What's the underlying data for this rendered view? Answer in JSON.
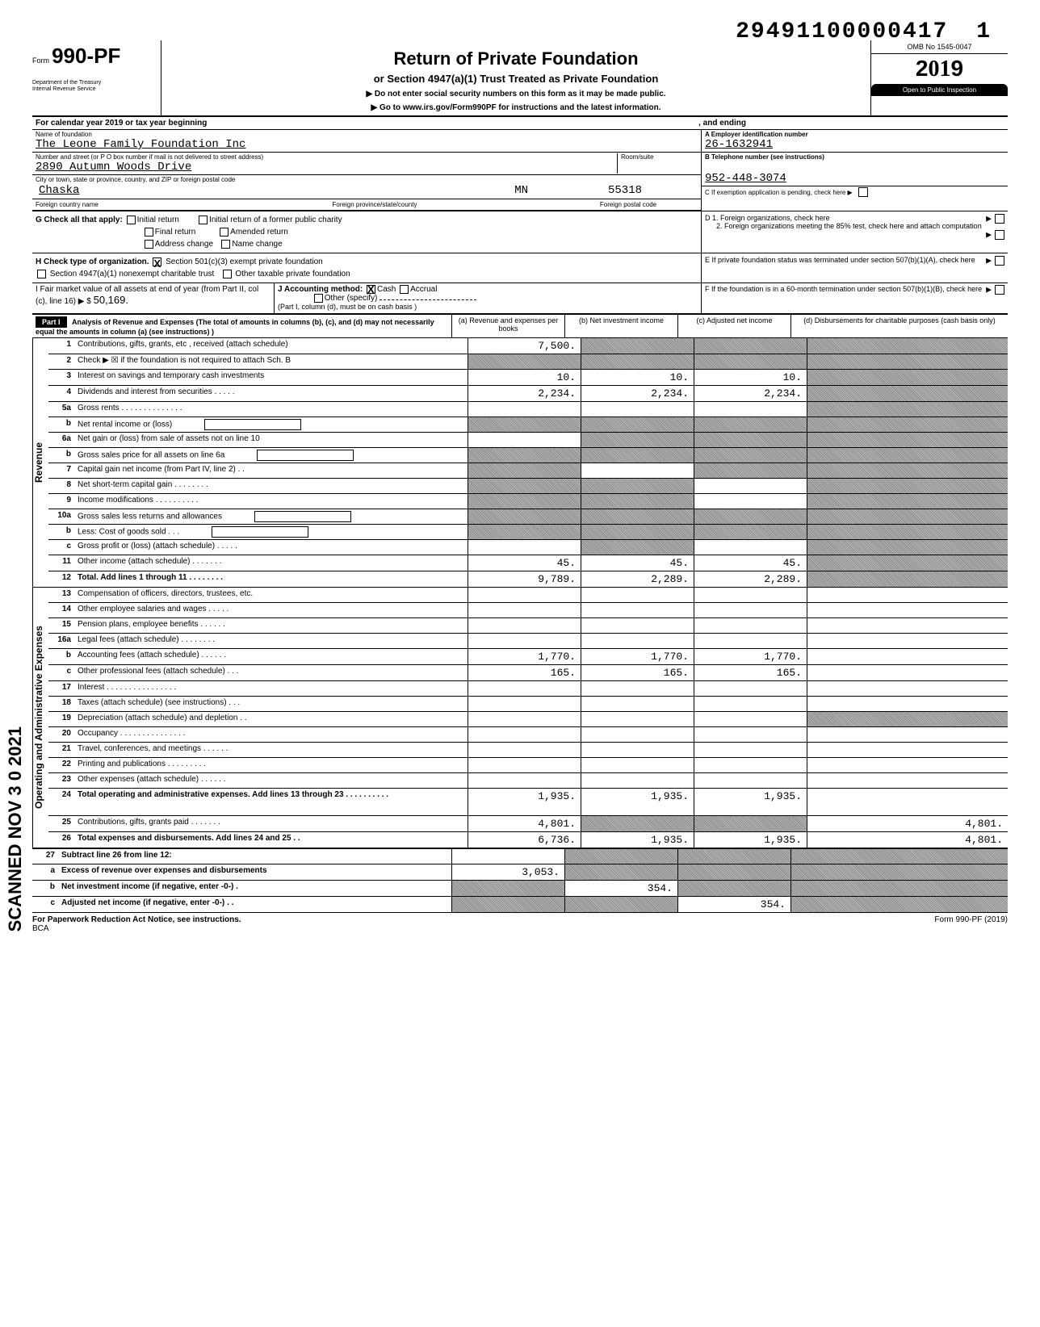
{
  "meta": {
    "doc_number": "29491100000417",
    "doc_number_trail": "1",
    "scanned_stamp": "SCANNED NOV 3 0 2021",
    "footer_left": "For Paperwork Reduction Act Notice, see instructions.",
    "footer_bca": "BCA",
    "footer_right": "Form 990-PF (2019)"
  },
  "header": {
    "form_label": "Form",
    "form_number": "990-PF",
    "dept": "Department of the Treasury\nInternal Revenue Service",
    "title": "Return of Private Foundation",
    "subtitle": "or Section 4947(a)(1) Trust Treated as Private Foundation",
    "instr1": "▶   Do not enter social security numbers on this form as it may be made public.",
    "instr2": "▶   Go to www.irs.gov/Form990PF for instructions and the latest information.",
    "omb": "OMB No 1545-0047",
    "year_prefix": "2",
    "year_mid": "01",
    "year_suffix": "9",
    "inspect": "Open to Public Inspection"
  },
  "calendar": {
    "text": "For calendar year 2019 or tax year beginning",
    "ending": ", and ending"
  },
  "identity": {
    "name_lbl": "Name of foundation",
    "name": "The Leone Family Foundation Inc",
    "addr_lbl": "Number and street (or P O  box number if mail is not delivered to street address)",
    "addr": "2890 Autumn Woods Drive",
    "room_lbl": "Room/suite",
    "city_lbl": "City or town, state or province, country, and ZIP or foreign postal code",
    "city": "Chaska",
    "state": "MN",
    "zip": "55318",
    "foreign_country_lbl": "Foreign country name",
    "foreign_prov_lbl": "Foreign province/state/county",
    "foreign_postal_lbl": "Foreign postal code",
    "ein_lbl": "A  Employer identification number",
    "ein": "26-1632941",
    "tel_lbl": "B  Telephone number (see instructions)",
    "tel": "952-448-3074",
    "c_lbl": "C  If exemption application is pending, check here  ▶"
  },
  "g": {
    "label": "G  Check all that apply:",
    "opts": {
      "initial_return": "Initial return",
      "initial_former": "Initial return of a former public charity",
      "final_return": "Final return",
      "amended": "Amended return",
      "addr_change": "Address change",
      "name_change": "Name change"
    },
    "d1": "D  1. Foreign organizations, check here",
    "d2": "2. Foreign organizations meeting the 85% test, check here and attach computation"
  },
  "h": {
    "label": "H  Check type of organization.",
    "opt1": "Section 501(c)(3) exempt private foundation",
    "opt2": "Section 4947(a)(1) nonexempt charitable trust",
    "opt3": "Other taxable private foundation",
    "e": "E  If private foundation status was terminated under section 507(b)(1)(A), check here"
  },
  "i": {
    "label": "I   Fair market value of all assets at end of year (from Part II, col (c), line 16)  ▶ $",
    "value": "50,169.",
    "j_label": "J   Accounting method:",
    "j_cash": "Cash",
    "j_accrual": "Accrual",
    "j_other": "Other (specify)",
    "j_note": "(Part I, column (d), must be on cash basis )",
    "f": "F  If the foundation is in a 60-month termination under section 507(b)(1)(B), check here"
  },
  "part1": {
    "badge": "Part I",
    "head_text": "Analysis of Revenue and Expenses (The total of amounts in columns (b), (c), and (d) may not necessarily equal the amounts in column (a) (see instructions) )",
    "col_a": "(a) Revenue and expenses per books",
    "col_b": "(b) Net investment income",
    "col_c": "(c) Adjusted net income",
    "col_d": "(d) Disbursements for charitable purposes (cash basis only)",
    "rev_label": "Revenue",
    "exp_label": "Operating and Administrative Expenses",
    "rows": [
      {
        "n": "1",
        "t": "Contributions, gifts, grants, etc , received (attach schedule)",
        "a": "7,500.",
        "b": "shade",
        "c": "shade",
        "d": "shade"
      },
      {
        "n": "2",
        "t": "Check ▶ ☒ if the foundation is not required to attach Sch. B",
        "a": "shade",
        "b": "shade",
        "c": "shade",
        "d": "shade"
      },
      {
        "n": "3",
        "t": "Interest on savings and temporary cash investments",
        "a": "10.",
        "b": "10.",
        "c": "10.",
        "d": "shade"
      },
      {
        "n": "4",
        "t": "Dividends and interest from securities  . . . . .",
        "a": "2,234.",
        "b": "2,234.",
        "c": "2,234.",
        "d": "shade"
      },
      {
        "n": "5a",
        "t": "Gross rents  . . . . . . . . . . . . . .",
        "a": "",
        "b": "",
        "c": "",
        "d": "shade"
      },
      {
        "n": "b",
        "t": "Net rental income or (loss)",
        "a": "shade",
        "b": "shade",
        "c": "shade",
        "d": "shade",
        "box": true
      },
      {
        "n": "6a",
        "t": "Net gain or (loss) from sale of assets not on line 10",
        "a": "",
        "b": "shade",
        "c": "shade",
        "d": "shade"
      },
      {
        "n": "b",
        "t": "Gross sales price for all assets on line 6a",
        "a": "shade",
        "b": "shade",
        "c": "shade",
        "d": "shade",
        "box": true
      },
      {
        "n": "7",
        "t": "Capital gain net income (from Part IV, line 2)  . .",
        "a": "shade",
        "b": "",
        "c": "shade",
        "d": "shade"
      },
      {
        "n": "8",
        "t": "Net short-term capital gain  . . . . . . . .",
        "a": "shade",
        "b": "shade",
        "c": "",
        "d": "shade"
      },
      {
        "n": "9",
        "t": "Income modifications  . . . . . . . . . .",
        "a": "shade",
        "b": "shade",
        "c": "",
        "d": "shade"
      },
      {
        "n": "10a",
        "t": "Gross sales less returns and allowances",
        "a": "shade",
        "b": "shade",
        "c": "shade",
        "d": "shade",
        "box": true
      },
      {
        "n": "b",
        "t": "Less: Cost of goods sold   . . .",
        "a": "shade",
        "b": "shade",
        "c": "shade",
        "d": "shade",
        "box": true
      },
      {
        "n": "c",
        "t": "Gross profit or (loss) (attach schedule)  . . . . .",
        "a": "",
        "b": "shade",
        "c": "",
        "d": "shade"
      },
      {
        "n": "11",
        "t": "Other income (attach schedule)  . . . . . . .",
        "a": "45.",
        "b": "45.",
        "c": "45.",
        "d": "shade"
      },
      {
        "n": "12",
        "t": "Total.  Add lines 1 through 11  . . . . . . . .",
        "a": "9,789.",
        "b": "2,289.",
        "c": "2,289.",
        "d": "shade",
        "bold": true
      }
    ],
    "exp_rows": [
      {
        "n": "13",
        "t": "Compensation of officers, directors, trustees, etc.",
        "a": "",
        "b": "",
        "c": "",
        "d": ""
      },
      {
        "n": "14",
        "t": "Other employee salaries and wages  . . . . .",
        "a": "",
        "b": "",
        "c": "",
        "d": ""
      },
      {
        "n": "15",
        "t": "Pension plans, employee benefits  . . . . . .",
        "a": "",
        "b": "",
        "c": "",
        "d": ""
      },
      {
        "n": "16a",
        "t": "Legal fees (attach schedule)  . . . . . . . .",
        "a": "",
        "b": "",
        "c": "",
        "d": ""
      },
      {
        "n": "b",
        "t": "Accounting fees (attach schedule)  . . . . . .",
        "a": "1,770.",
        "b": "1,770.",
        "c": "1,770.",
        "d": ""
      },
      {
        "n": "c",
        "t": "Other professional fees (attach schedule)  . . .",
        "a": "165.",
        "b": "165.",
        "c": "165.",
        "d": ""
      },
      {
        "n": "17",
        "t": "Interest . . . . . . . . . . . . . . . .",
        "a": "",
        "b": "",
        "c": "",
        "d": ""
      },
      {
        "n": "18",
        "t": "Taxes (attach schedule) (see instructions)  . . .",
        "a": "",
        "b": "",
        "c": "",
        "d": ""
      },
      {
        "n": "19",
        "t": "Depreciation (attach schedule) and depletion  . .",
        "a": "",
        "b": "",
        "c": "",
        "d": "shade"
      },
      {
        "n": "20",
        "t": "Occupancy . . . . . . . . . . . . . . .",
        "a": "",
        "b": "",
        "c": "",
        "d": ""
      },
      {
        "n": "21",
        "t": "Travel, conferences, and meetings  . . . . . .",
        "a": "",
        "b": "",
        "c": "",
        "d": ""
      },
      {
        "n": "22",
        "t": "Printing and publications   . . . . . . . . .",
        "a": "",
        "b": "",
        "c": "",
        "d": ""
      },
      {
        "n": "23",
        "t": "Other expenses (attach schedule)  . . . . . .",
        "a": "",
        "b": "",
        "c": "",
        "d": ""
      },
      {
        "n": "24",
        "t": "Total operating and administrative expenses. Add lines 13 through 23   . . . . . . . . . .",
        "a": "1,935.",
        "b": "1,935.",
        "c": "1,935.",
        "d": "",
        "bold": true,
        "tall": true
      },
      {
        "n": "25",
        "t": "Contributions, gifts, grants paid   . . . . . . .",
        "a": "4,801.",
        "b": "shade",
        "c": "shade",
        "d": "4,801."
      },
      {
        "n": "26",
        "t": "Total expenses and disbursements. Add lines 24 and 25 . .",
        "a": "6,736.",
        "b": "1,935.",
        "c": "1,935.",
        "d": "4,801.",
        "bold": true
      }
    ],
    "net_rows": [
      {
        "n": "27",
        "t": "Subtract line 26 from line 12:",
        "a": "",
        "b": "shade",
        "c": "shade",
        "d": "shade",
        "bold": true
      },
      {
        "n": "a",
        "t": "Excess of revenue over expenses and disbursements",
        "a": "3,053.",
        "b": "shade",
        "c": "shade",
        "d": "shade",
        "bold": true
      },
      {
        "n": "b",
        "t": "Net investment income (if negative, enter -0-)  .",
        "a": "shade",
        "b": "354.",
        "c": "shade",
        "d": "shade",
        "bold": true
      },
      {
        "n": "c",
        "t": "Adjusted net income (if negative, enter -0-)  . .",
        "a": "shade",
        "b": "shade",
        "c": "354.",
        "d": "shade",
        "bold": true
      }
    ]
  }
}
